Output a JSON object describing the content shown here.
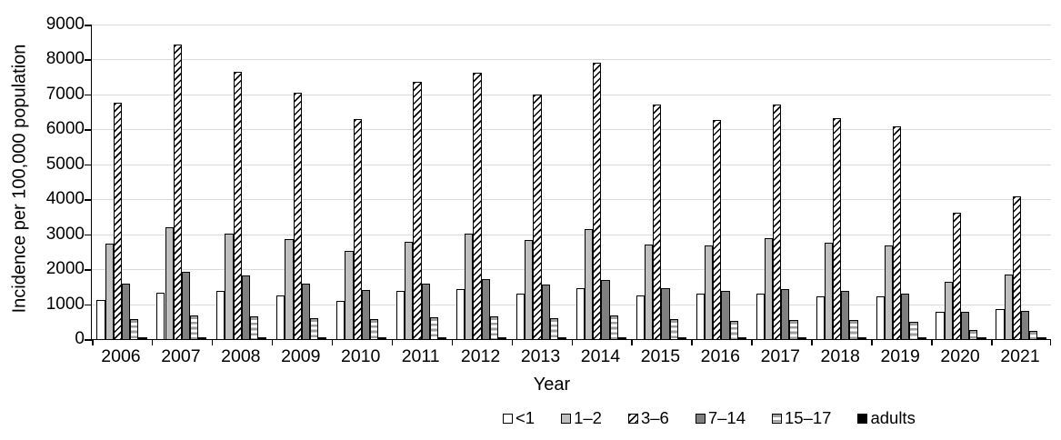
{
  "chart_data": {
    "type": "bar",
    "title": "",
    "xlabel": "Year",
    "ylabel": "Incidence per 100,000 population",
    "ylim": [
      0,
      9000
    ],
    "ytick_step": 1000,
    "grid": "horizontal-light-gray",
    "legend_position": "bottom-center",
    "categories": [
      "2006",
      "2007",
      "2008",
      "2009",
      "2010",
      "2011",
      "2012",
      "2013",
      "2014",
      "2015",
      "2016",
      "2017",
      "2018",
      "2019",
      "2020",
      "2021"
    ],
    "series": [
      {
        "name": "<1",
        "pattern": "white-outline",
        "values": [
          1130,
          1330,
          1380,
          1260,
          1090,
          1380,
          1420,
          1290,
          1470,
          1240,
          1310,
          1310,
          1230,
          1210,
          770,
          850
        ]
      },
      {
        "name": "1–2",
        "pattern": "light-gray",
        "values": [
          2740,
          3210,
          3020,
          2870,
          2530,
          2780,
          3030,
          2840,
          3160,
          2700,
          2670,
          2880,
          2760,
          2690,
          1650,
          1850
        ]
      },
      {
        "name": "3–6",
        "pattern": "diagonal-hatch",
        "values": [
          6760,
          8420,
          7660,
          7060,
          6300,
          7360,
          7620,
          7000,
          7910,
          6720,
          6260,
          6710,
          6320,
          6100,
          3620,
          4080
        ]
      },
      {
        "name": "7–14",
        "pattern": "dark-gray",
        "values": [
          1600,
          1930,
          1820,
          1600,
          1410,
          1590,
          1720,
          1570,
          1700,
          1460,
          1370,
          1420,
          1390,
          1310,
          790,
          810
        ]
      },
      {
        "name": "15–17",
        "pattern": "horizontal-stripes",
        "values": [
          560,
          680,
          640,
          590,
          560,
          620,
          640,
          600,
          670,
          570,
          510,
          540,
          540,
          490,
          270,
          230
        ]
      },
      {
        "name": "adults",
        "pattern": "black",
        "values": [
          40,
          40,
          40,
          40,
          40,
          40,
          40,
          40,
          40,
          40,
          40,
          40,
          40,
          50,
          60,
          60
        ]
      }
    ],
    "colors": {
      "axis": "#000000",
      "gridline": "#d9d9d9",
      "light_gray_fill": "#bfbfbf",
      "dark_gray_fill": "#7f7f7f",
      "stripe_gray": "#9e9e9e",
      "black_fill": "#000000"
    }
  }
}
